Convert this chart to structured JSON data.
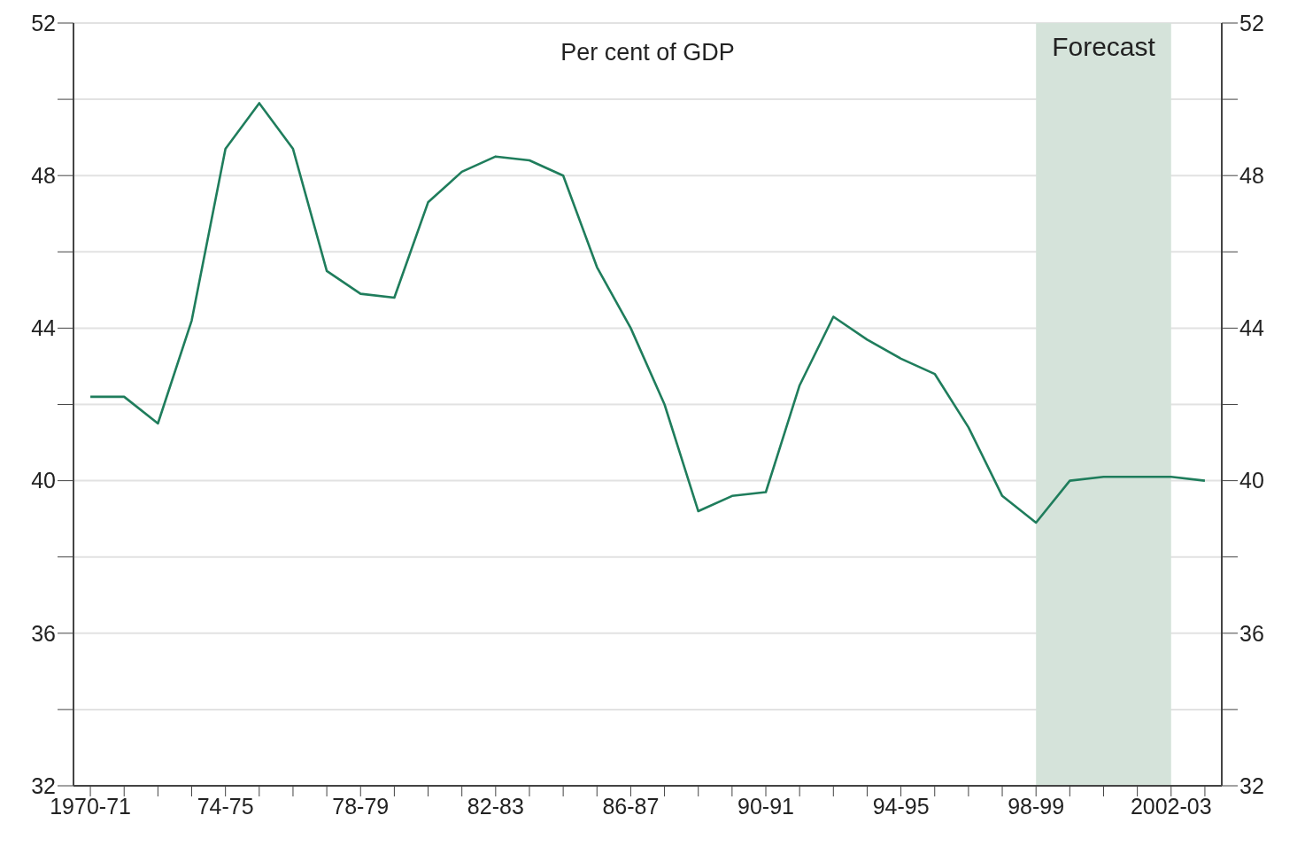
{
  "chart_data": {
    "type": "line",
    "title": "Per cent of GDP",
    "categories": [
      "1970-71",
      null,
      null,
      null,
      "74-75",
      null,
      null,
      null,
      "78-79",
      null,
      null,
      null,
      "82-83",
      null,
      null,
      null,
      "86-87",
      null,
      null,
      null,
      "90-91",
      null,
      null,
      null,
      "94-95",
      null,
      null,
      null,
      "98-99",
      null,
      null,
      null,
      "2002-03",
      null
    ],
    "series": [
      {
        "color": "#1f7d5c",
        "values": [
          42.2,
          42.2,
          41.5,
          44.2,
          48.7,
          49.9,
          48.7,
          45.5,
          44.9,
          44.8,
          47.3,
          48.1,
          48.5,
          48.4,
          48.0,
          45.6,
          44.0,
          42.0,
          39.2,
          39.6,
          39.7,
          42.5,
          44.3,
          43.7,
          43.2,
          42.8,
          41.4,
          39.6,
          38.9,
          40.0,
          40.1,
          40.1,
          40.1,
          40.0
        ]
      }
    ],
    "ylim": [
      32,
      52
    ],
    "yticks": [
      32,
      {
        "value": 34,
        "label": null
      },
      36,
      {
        "value": 38,
        "label": null
      },
      40,
      {
        "value": 42,
        "label": null
      },
      44,
      {
        "value": 46,
        "label": null
      },
      48,
      {
        "value": 50,
        "label": null
      },
      52
    ],
    "y2lim": [
      32,
      52
    ],
    "y2ticks": [
      32,
      {
        "value": 34,
        "label": null
      },
      36,
      {
        "value": 38,
        "label": null
      },
      40,
      {
        "value": 42,
        "label": null
      },
      44,
      {
        "value": 46,
        "label": null
      },
      48,
      {
        "value": 50,
        "label": null
      },
      52
    ],
    "bands": [
      {
        "axis": "x",
        "from": "98-99",
        "to": "2002-03",
        "label": "Forecast",
        "color": "#d5e3da"
      }
    ],
    "grid": "y",
    "legend": false
  }
}
